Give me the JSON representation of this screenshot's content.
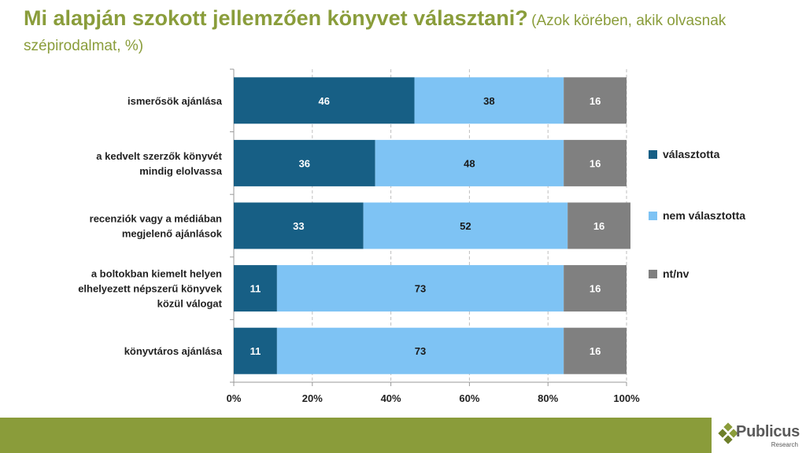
{
  "title": {
    "main": "Mi alapján szokott jellemzően könyvet választani?",
    "sub": "(Azok körében, akik olvasnak szépirodalmat, %)"
  },
  "chart_data": {
    "type": "bar",
    "orientation": "horizontal",
    "stacked": true,
    "categories": [
      "ismerősök ajánlása",
      "a kedvelt szerzők könyvét mindig elolvassa",
      "recenziók vagy a médiában megjelenő ajánlások",
      "a boltokban kiemelt helyen elhelyezett népszerű könyvek közül válogat",
      "könyvtáros ajánlása"
    ],
    "category_lines": [
      [
        "ismerősök ajánlása"
      ],
      [
        "a kedvelt szerzők könyvét",
        "mindig elolvassa"
      ],
      [
        "recenziók vagy a médiában",
        "megjelenő ajánlások"
      ],
      [
        "a boltokban kiemelt helyen",
        "elhelyezett népszerű könyvek",
        "közül válogat"
      ],
      [
        "könyvtáros ajánlása"
      ]
    ],
    "series": [
      {
        "name": "választotta",
        "color": "#175f85",
        "label_color": "#ffffff",
        "values": [
          46,
          36,
          33,
          11,
          11
        ]
      },
      {
        "name": "nem választotta",
        "color": "#7ec3f4",
        "label_color": "#1a1a1a",
        "values": [
          38,
          48,
          52,
          73,
          73
        ]
      },
      {
        "name": "nt/nv",
        "color": "#808080",
        "label_color": "#ffffff",
        "values": [
          16,
          16,
          16,
          16,
          16
        ]
      }
    ],
    "xlim": [
      0,
      100
    ],
    "xticks": [
      "0%",
      "20%",
      "40%",
      "60%",
      "80%",
      "100%"
    ],
    "grid": true,
    "legend": "right"
  },
  "brand": {
    "name": "Publicus",
    "tagline": "Research",
    "accent": "#8a9c3a"
  }
}
